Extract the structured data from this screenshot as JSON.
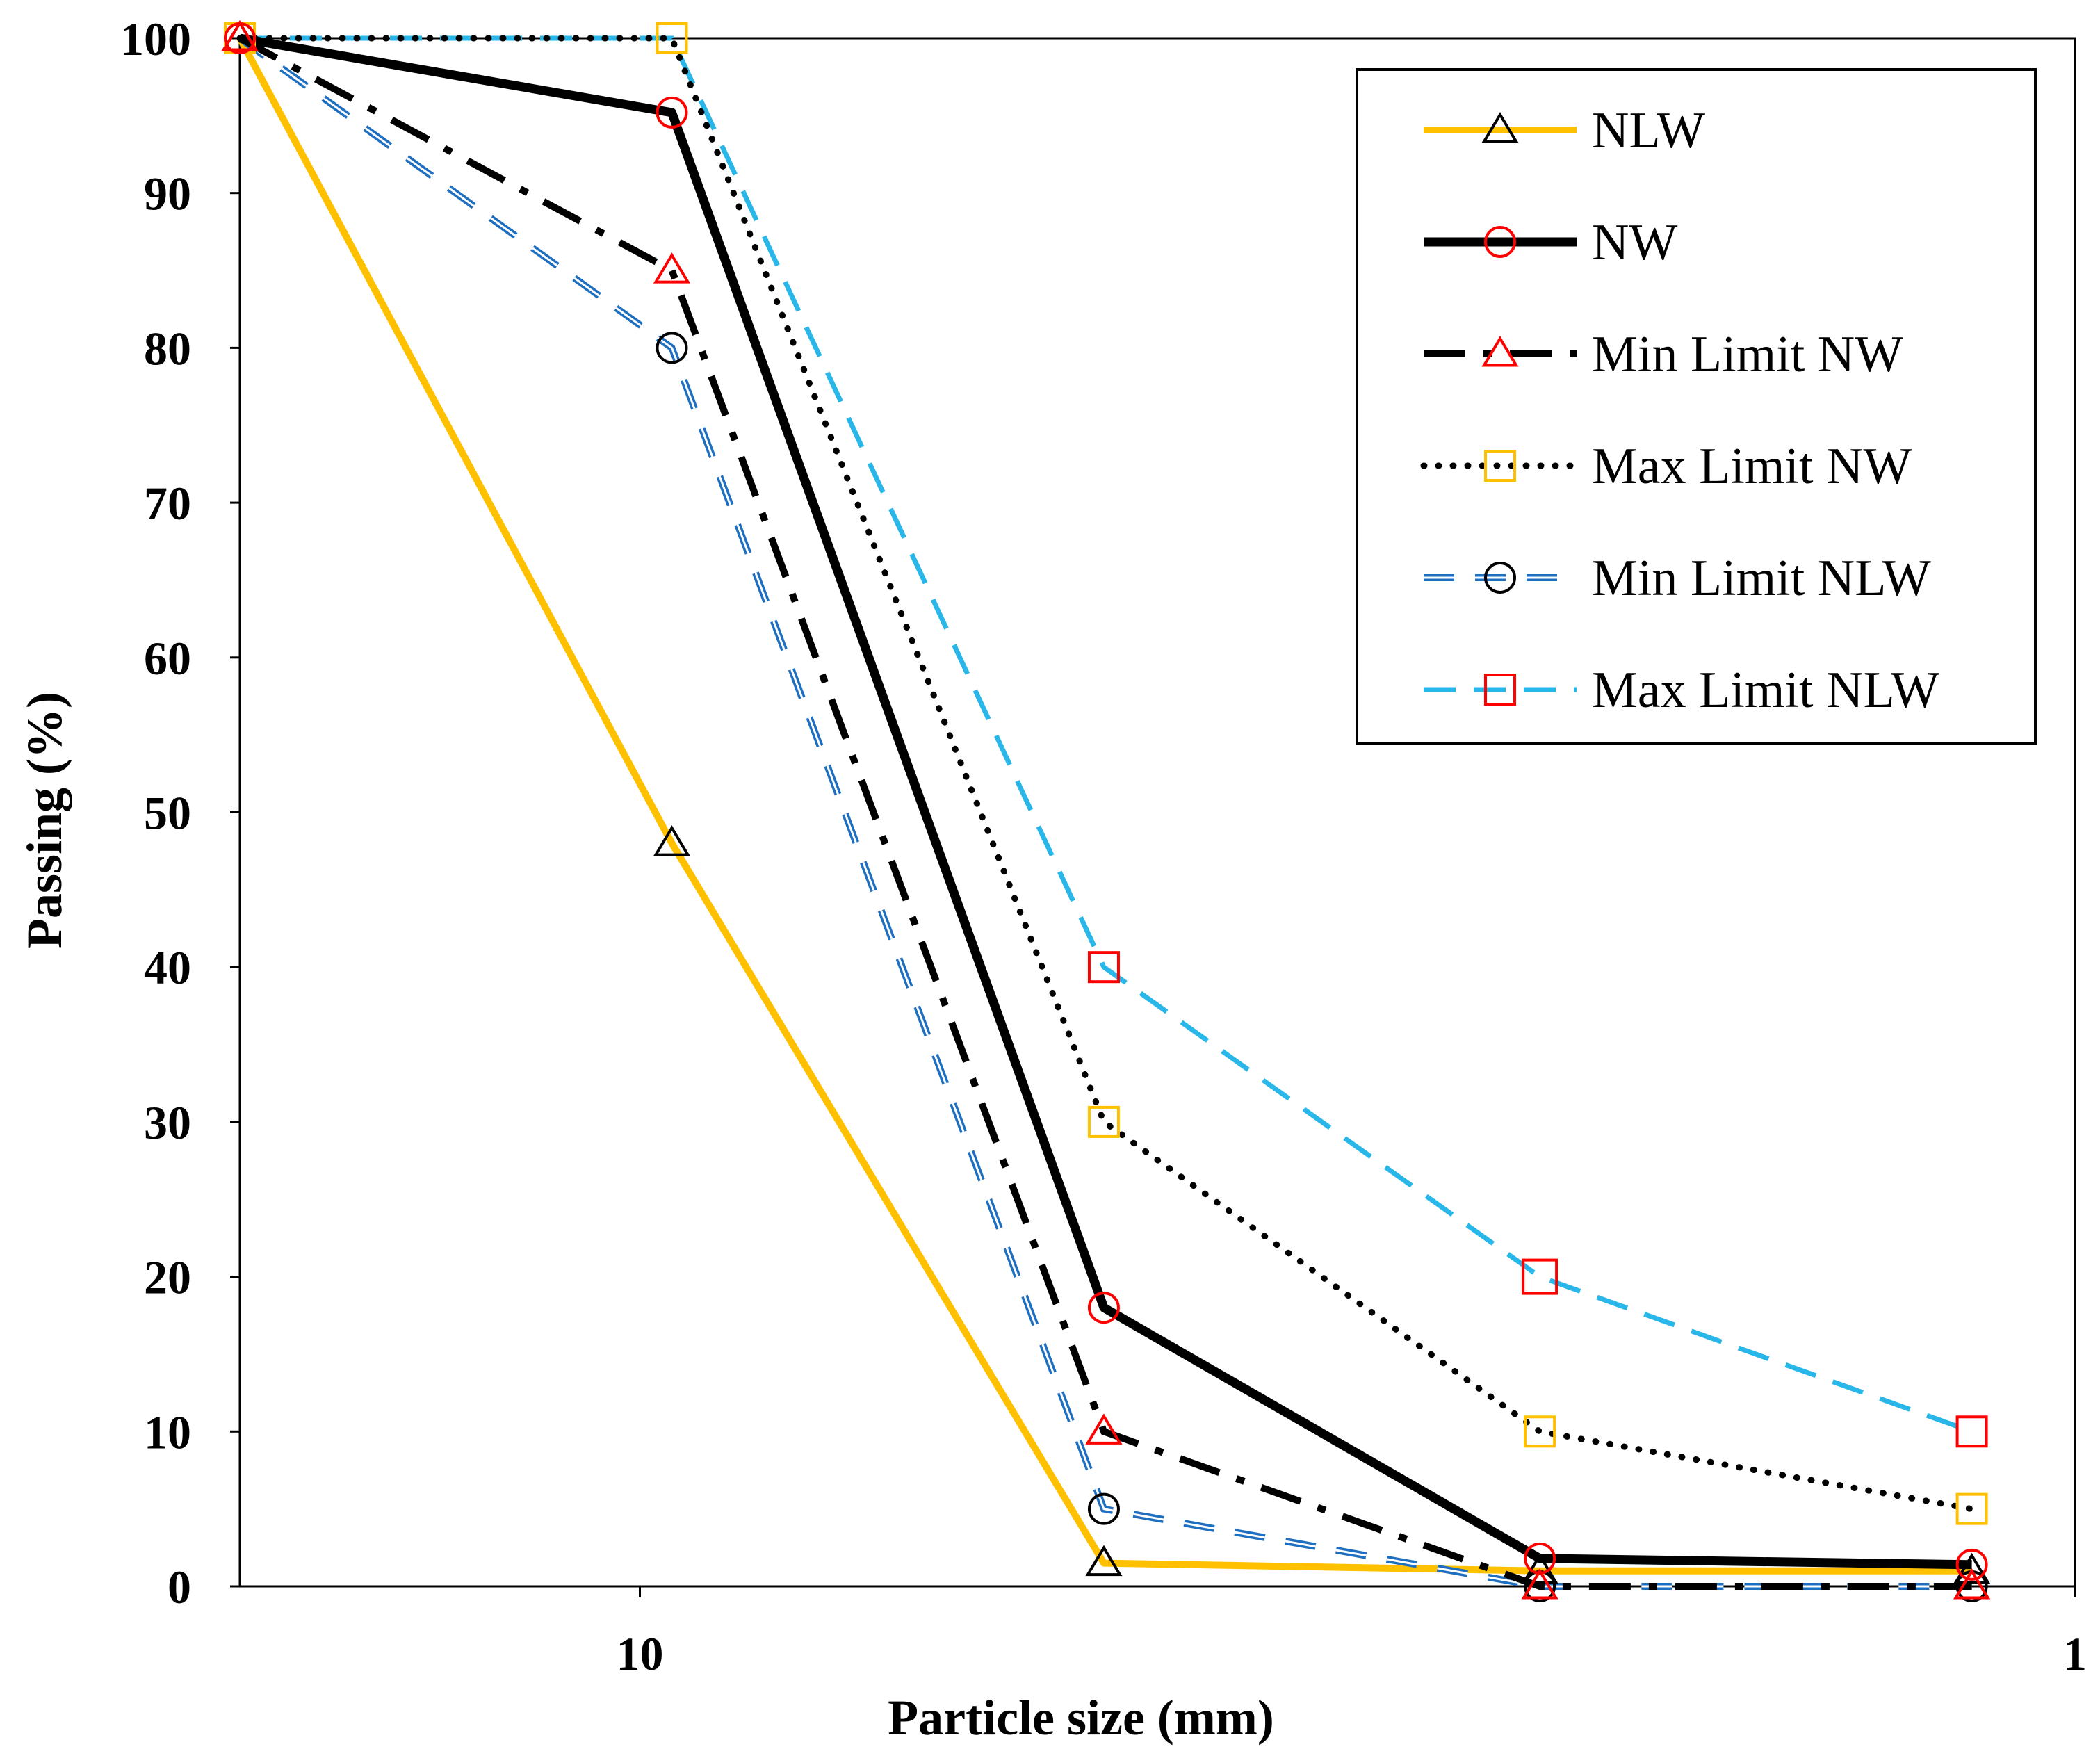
{
  "chart_data": {
    "type": "line",
    "xscale": "log",
    "xaxis_reversed": true,
    "xlim": [
      1,
      19
    ],
    "ylim": [
      0,
      100
    ],
    "xlabel": "Particle size (mm)",
    "ylabel": "Passing (%)",
    "x_ticks": [
      10,
      1
    ],
    "x_tick_labels": [
      "10",
      "1"
    ],
    "y_ticks": [
      0,
      10,
      20,
      30,
      40,
      50,
      60,
      70,
      80,
      90,
      100
    ],
    "y_tick_labels": [
      "0",
      "10",
      "20",
      "30",
      "40",
      "50",
      "60",
      "70",
      "80",
      "90",
      "100"
    ],
    "x": [
      19,
      9.5,
      4.75,
      2.36,
      1.18
    ],
    "legend_position": "top-right",
    "series": [
      {
        "name": "NLW",
        "values": [
          100,
          48,
          1.5,
          1,
          1
        ],
        "line_color": "#FFC000",
        "line_style": "solid",
        "marker": "triangle",
        "marker_color": "#000000"
      },
      {
        "name": "NW",
        "values": [
          100,
          95.2,
          18,
          1.8,
          1.4
        ],
        "line_color": "#000000",
        "line_style": "solid",
        "marker": "circle",
        "marker_color": "#FF0000"
      },
      {
        "name": "Min Limit NW",
        "values": [
          100,
          85,
          10,
          0,
          0
        ],
        "line_color": "#000000",
        "line_style": "dashdot",
        "marker": "triangle",
        "marker_color": "#FF0000"
      },
      {
        "name": "Max Limit NW",
        "values": [
          100,
          100,
          30,
          10,
          5
        ],
        "line_color": "#000000",
        "line_style": "dotted",
        "marker": "square",
        "marker_color": "#FFC000"
      },
      {
        "name": "Min Limit NLW",
        "values": [
          100,
          80,
          5,
          0,
          0
        ],
        "line_color": "#1F6FC0",
        "line_style": "outlined-dash",
        "marker": "circle",
        "marker_color": "#000000"
      },
      {
        "name": "Max Limit NLW",
        "values": [
          100,
          100,
          40,
          20,
          10
        ],
        "line_color": "#29B6E8",
        "line_style": "dashed",
        "marker": "square",
        "marker_color": "#FF0000"
      }
    ]
  }
}
